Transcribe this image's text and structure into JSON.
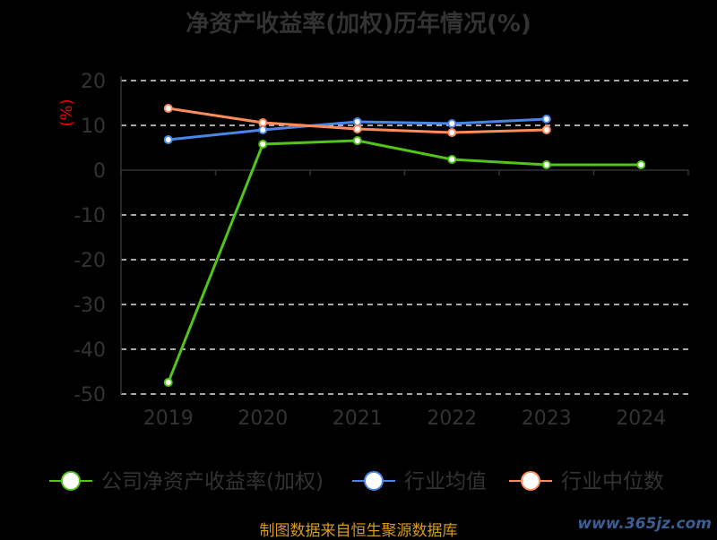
{
  "chart_data": {
    "type": "line",
    "title": "净资产收益率(加权)历年情况(%)",
    "ylabel": "(%)",
    "xlabel": "",
    "categories": [
      "2019",
      "2020",
      "2021",
      "2022",
      "2023",
      "2024"
    ],
    "ylim": [
      -50,
      20
    ],
    "yticks": [
      20,
      10,
      0,
      -10,
      -20,
      -30,
      -40,
      -50
    ],
    "grid": true,
    "legend_position": "bottom",
    "series": [
      {
        "name": "公司净资产收益率(加权)",
        "color": "#52c41a",
        "values": [
          -47.4,
          5.8,
          6.6,
          2.4,
          1.2,
          1.2
        ]
      },
      {
        "name": "行业均值",
        "color": "#4a86e8",
        "values": [
          6.8,
          9.0,
          10.8,
          10.4,
          11.4,
          null
        ]
      },
      {
        "name": "行业中位数",
        "color": "#ff8c5a",
        "values": [
          13.8,
          10.6,
          9.2,
          8.4,
          9.0,
          null
        ]
      }
    ]
  },
  "footer": "制图数据来自恒生聚源数据库",
  "watermark": "www.365jz.com"
}
